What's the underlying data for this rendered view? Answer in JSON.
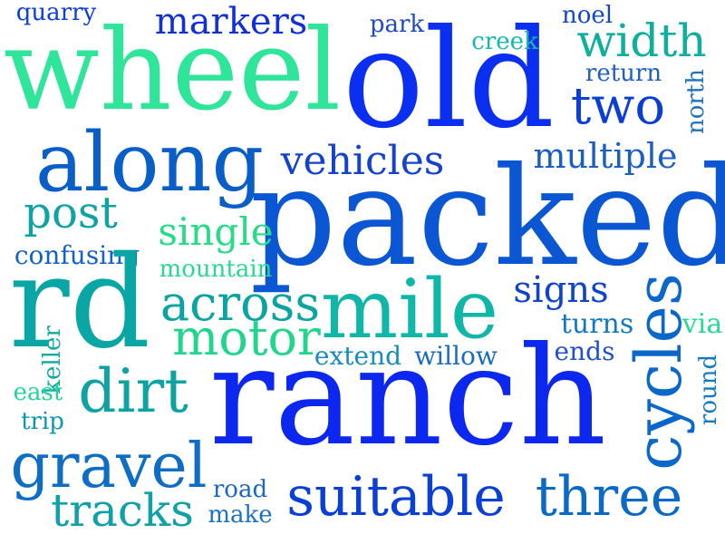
{
  "words": [
    {
      "text": "quarry",
      "color": "#0c3fd9"
    },
    {
      "text": "markers",
      "color": "#1230d8"
    },
    {
      "text": "park",
      "color": "#1f49c8"
    },
    {
      "text": "noel",
      "color": "#1248c8"
    },
    {
      "text": "wheel",
      "color": "#2fe59a"
    },
    {
      "text": "old",
      "color": "#0b2ff0"
    },
    {
      "text": "creek",
      "color": "#12bba9"
    },
    {
      "text": "width",
      "color": "#0eb09d"
    },
    {
      "text": "return",
      "color": "#1d5fc3"
    },
    {
      "text": "north",
      "color": "#1c72c2"
    },
    {
      "text": "two",
      "color": "#0a3ed6"
    },
    {
      "text": "along",
      "color": "#0a5ec8"
    },
    {
      "text": "vehicles",
      "color": "#1543cd"
    },
    {
      "text": "multiple",
      "color": "#1b5ec6"
    },
    {
      "text": "packed",
      "color": "#0b57d3"
    },
    {
      "text": "post",
      "color": "#10a3a5"
    },
    {
      "text": "single",
      "color": "#25dc87"
    },
    {
      "text": "confusing",
      "color": "#1262c9"
    },
    {
      "text": "mountain",
      "color": "#27d991"
    },
    {
      "text": "rd",
      "color": "#0aa6a6"
    },
    {
      "text": "across",
      "color": "#0ba4a0"
    },
    {
      "text": "mile",
      "color": "#10b7a8"
    },
    {
      "text": "signs",
      "color": "#0f45ce"
    },
    {
      "text": "cycles",
      "color": "#0b67c9"
    },
    {
      "text": "motor",
      "color": "#20d68c"
    },
    {
      "text": "turns",
      "color": "#1378c3"
    },
    {
      "text": "via",
      "color": "#28d995"
    },
    {
      "text": "extend",
      "color": "#178bc0"
    },
    {
      "text": "willow",
      "color": "#1a6bc2"
    },
    {
      "text": "ends",
      "color": "#2050cc"
    },
    {
      "text": "keller",
      "color": "#12aaa3"
    },
    {
      "text": "dirt",
      "color": "#0ea3a3"
    },
    {
      "text": "east",
      "color": "#24d498"
    },
    {
      "text": "round",
      "color": "#147bc1"
    },
    {
      "text": "ranch",
      "color": "#0c27ee"
    },
    {
      "text": "trip",
      "color": "#0e98ad"
    },
    {
      "text": "gravel",
      "color": "#0e6dc4"
    },
    {
      "text": "tracks",
      "color": "#10a1a8"
    },
    {
      "text": "road",
      "color": "#1a68c1"
    },
    {
      "text": "make",
      "color": "#1b73c0"
    },
    {
      "text": "suitable",
      "color": "#0a40d6"
    },
    {
      "text": "three",
      "color": "#0a6ac6"
    }
  ]
}
